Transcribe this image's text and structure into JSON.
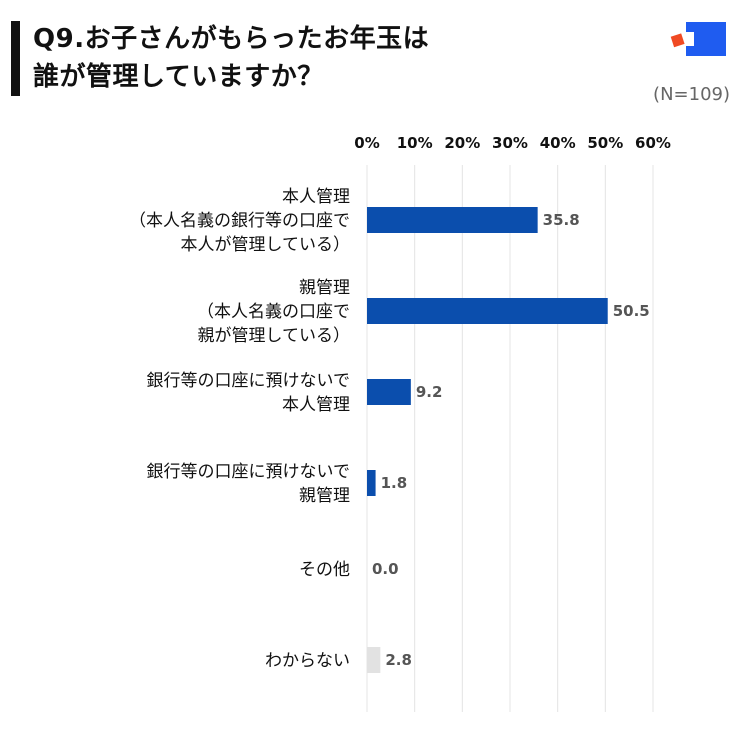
{
  "title": {
    "line1": "Q9.お子さんがもらったお年玉は",
    "line2": "誰が管理していますか？"
  },
  "sample_size": "(N=109)",
  "logo": {
    "icon": "brand-logo-icon",
    "colors": [
      "#1F5CF0",
      "#F04A23"
    ]
  },
  "chart_data": {
    "type": "bar",
    "orientation": "horizontal",
    "title": "Q9.お子さんがもらったお年玉は誰が管理していますか？",
    "categories": [
      [
        "本人管理",
        "（本人名義の銀行等の口座で",
        "本人が管理している）"
      ],
      [
        "親管理",
        "（本人名義の口座で",
        "親が管理している）"
      ],
      [
        "銀行等の口座に預けないで",
        "本人管理"
      ],
      [
        "銀行等の口座に預けないで",
        "親管理"
      ],
      [
        "その他"
      ],
      [
        "わからない"
      ]
    ],
    "values": [
      35.8,
      50.5,
      9.2,
      1.8,
      0.0,
      2.8
    ],
    "value_labels": [
      "35.8",
      "50.5",
      "9.2",
      "1.8",
      "0.0",
      "2.8"
    ],
    "xlim": [
      0,
      60
    ],
    "x_ticks": [
      "0%",
      "10%",
      "20%",
      "30%",
      "40%",
      "50%",
      "60%"
    ],
    "tick_values": [
      0,
      10,
      20,
      30,
      40,
      50,
      60
    ],
    "axis_position": "top",
    "grid": true,
    "bar_colors": [
      "#0B4EAD",
      "#0B4EAD",
      "#0B4EAD",
      "#0B4EAD",
      "#0B4EAD",
      "#E2E2E2"
    ],
    "grid_color": "#E4E4E4"
  }
}
